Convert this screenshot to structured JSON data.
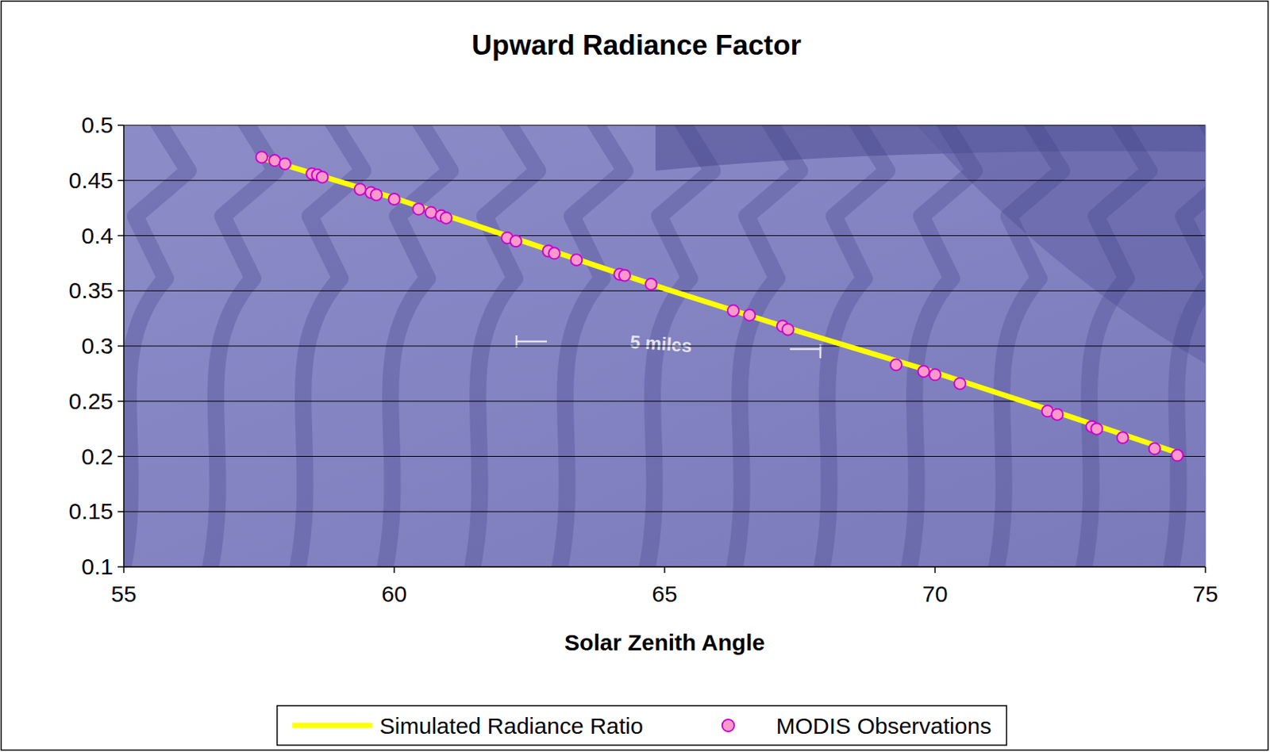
{
  "chart_data": {
    "type": "line",
    "title": "Upward Radiance Factor",
    "x_label": "Solar Zenith Angle",
    "annotations": [
      "5 miles"
    ],
    "xlim": [
      55,
      75
    ],
    "xticks": [
      55,
      60,
      65,
      70,
      75
    ],
    "ylim": [
      0.1,
      0.5
    ],
    "yticks": [
      0.1,
      0.15,
      0.2,
      0.25,
      0.3,
      0.35,
      0.4,
      0.45,
      0.5
    ],
    "grid": true,
    "legend": "bottom",
    "series": [
      {
        "name": "Simulated Radiance Ratio",
        "type": "line",
        "color": "#ffff00",
        "line_style": "solid",
        "x": [
          57.5,
          60,
          62.5,
          65,
          67.5,
          70,
          72.5,
          74.5
        ],
        "values": [
          0.471,
          0.434,
          0.393,
          0.352,
          0.313,
          0.276,
          0.236,
          0.203
        ]
      },
      {
        "name": "MODIS Observations",
        "type": "scatter",
        "color": "#ff99cc",
        "marker": "circle",
        "x": [
          57.55,
          57.79,
          57.98,
          58.48,
          58.58,
          58.67,
          59.37,
          59.57,
          59.67,
          60.0,
          60.45,
          60.68,
          60.87,
          60.96,
          62.09,
          62.25,
          62.85,
          62.96,
          63.37,
          64.17,
          64.26,
          64.75,
          66.27,
          66.57,
          67.18,
          67.28,
          69.28,
          69.79,
          70.0,
          70.46,
          72.08,
          72.26,
          72.9,
          72.99,
          73.47,
          74.06,
          74.48
        ],
        "values": [
          0.471,
          0.468,
          0.465,
          0.456,
          0.455,
          0.453,
          0.442,
          0.439,
          0.437,
          0.433,
          0.424,
          0.421,
          0.418,
          0.416,
          0.398,
          0.395,
          0.386,
          0.384,
          0.378,
          0.365,
          0.364,
          0.356,
          0.332,
          0.328,
          0.318,
          0.315,
          0.283,
          0.277,
          0.274,
          0.266,
          0.241,
          0.238,
          0.227,
          0.225,
          0.217,
          0.207,
          0.201
        ]
      }
    ]
  }
}
